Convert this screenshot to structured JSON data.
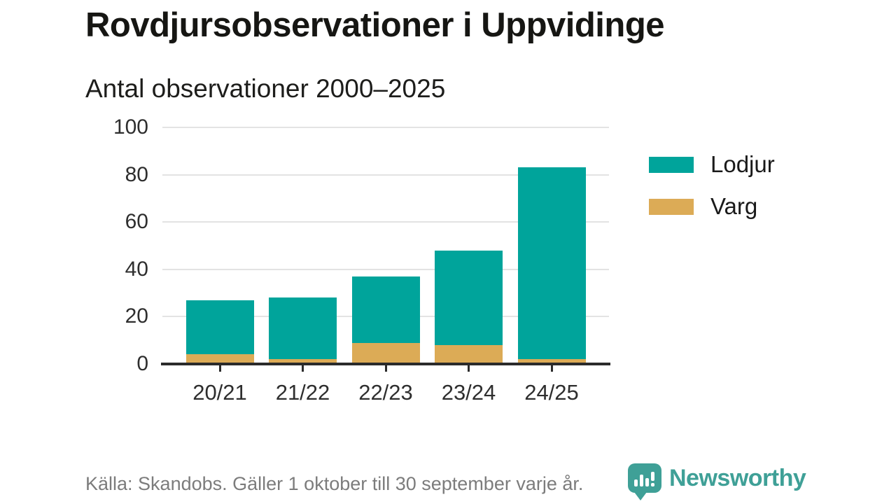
{
  "chart_data": {
    "type": "bar",
    "stacked": true,
    "title": "Rovdjursobservationer i Uppvidinge",
    "subtitle": "Antal observationer 2000–2025",
    "categories": [
      "20/21",
      "21/22",
      "22/23",
      "23/24",
      "24/25"
    ],
    "series": [
      {
        "name": "Lodjur",
        "color": "#00a49b",
        "values": [
          23,
          26,
          28,
          40,
          81
        ]
      },
      {
        "name": "Varg",
        "color": "#dcab56",
        "values": [
          4,
          2,
          9,
          8,
          2
        ]
      }
    ],
    "stack_order_bottom_to_top": [
      "Varg",
      "Lodjur"
    ],
    "totals": [
      27,
      28,
      37,
      48,
      83
    ],
    "xlabel": "",
    "ylabel": "",
    "ylim": [
      0,
      100
    ],
    "yticks": [
      0,
      20,
      40,
      60,
      80,
      100
    ],
    "grid": "horizontal-only",
    "legend_position": "right"
  },
  "footer": {
    "source": "Källa: Skandobs. Gäller 1 oktober till 30 september varje år.",
    "brand": "Newsworthy"
  },
  "colors": {
    "lodjur": "#00a49b",
    "varg": "#dcab56",
    "brand_teal": "#3fa097",
    "axis_line": "#2b2b2b",
    "gridline": "#e3e3e3",
    "text_primary": "#1a1a1a",
    "text_muted": "#7c7c7c"
  }
}
